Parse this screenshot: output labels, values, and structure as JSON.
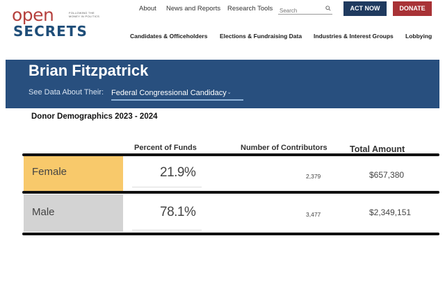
{
  "logo": {
    "open": "open",
    "secrets": "SECRETS",
    "tagline": "FOLLOWING THE MONEY IN POLITICS"
  },
  "top_nav": [
    "About",
    "News and Reports",
    "Research Tools"
  ],
  "search": {
    "placeholder": "Search",
    "icon": "search-icon"
  },
  "buttons": {
    "act_now": "ACT NOW",
    "donate": "DONATE"
  },
  "colors": {
    "brand_red": "#b5413e",
    "brand_blue": "#1f4e79",
    "banner": "#284f7e",
    "act_now": "#1f3a5f",
    "donate": "#a83236",
    "female_highlight": "#f8c96b",
    "male_highlight": "#d3d3d3"
  },
  "main_nav": [
    "Candidates & Officeholders",
    "Elections & Fundraising Data",
    "Industries & Interest Groups",
    "Lobbying"
  ],
  "banner": {
    "name": "Brian Fitzpatrick",
    "see_data_label": "See Data About Their:",
    "selected": "Federal Congressional Candidacy"
  },
  "section_title": "Donor Demographics 2023 - 2024",
  "table": {
    "headers": {
      "percent": "Percent of Funds",
      "contributors": "Number of Contributors",
      "total": "Total Amount"
    },
    "rows": [
      {
        "label": "Female",
        "percent": "21.9%",
        "contributors": "2,379",
        "total": "$657,380"
      },
      {
        "label": "Male",
        "percent": "78.1%",
        "contributors": "3,477",
        "total": "$2,349,151"
      }
    ]
  }
}
